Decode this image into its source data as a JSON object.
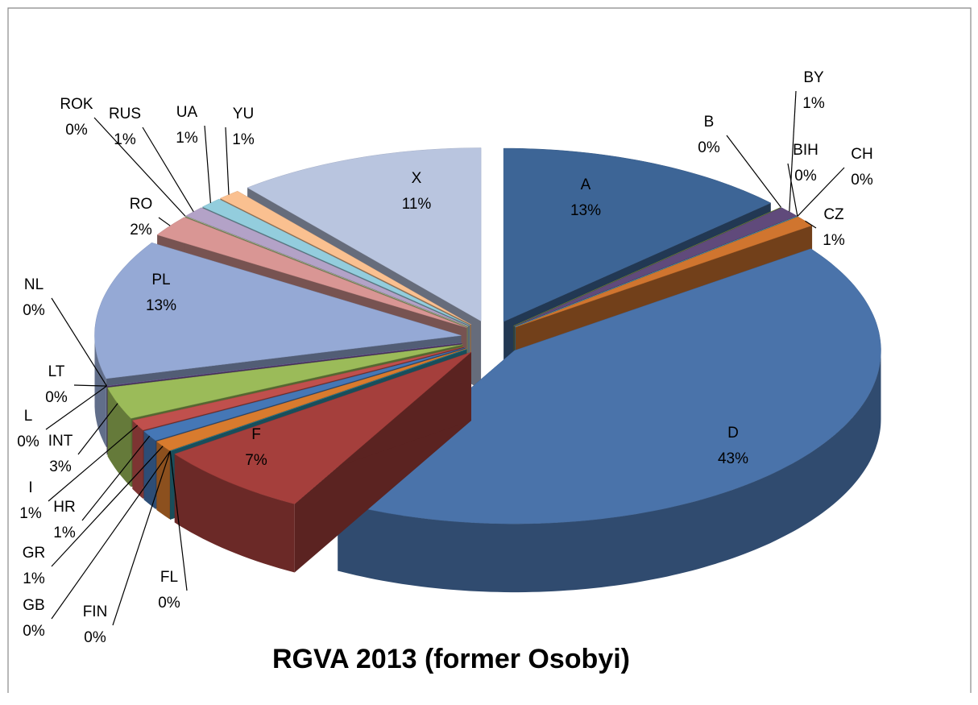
{
  "chart_data": {
    "type": "pie",
    "title": "RGVA 2013 (former Osobyi)",
    "categories": [
      "A",
      "B",
      "BY",
      "BIH",
      "CH",
      "CZ",
      "D",
      "F",
      "FL",
      "FIN",
      "GB",
      "GR",
      "HR",
      "I",
      "INT",
      "L",
      "LT",
      "NL",
      "PL",
      "RO",
      "ROK",
      "RUS",
      "UA",
      "YU",
      "X"
    ],
    "values": [
      13,
      0,
      1,
      0,
      0,
      1,
      43,
      7,
      0,
      0,
      0,
      1,
      1,
      1,
      3,
      0,
      0,
      0,
      13,
      2,
      0,
      1,
      1,
      1,
      11
    ],
    "value_labels": [
      "13%",
      "0%",
      "1%",
      "0%",
      "0%",
      "1%",
      "43%",
      "7%",
      "0%",
      "0%",
      "0%",
      "1%",
      "1%",
      "1%",
      "3%",
      "0%",
      "0%",
      "0%",
      "13%",
      "2%",
      "0%",
      "1%",
      "1%",
      "1%",
      "11%"
    ],
    "colors": [
      "#3d6596",
      "#77933c",
      "#604a7b",
      "#31859c",
      "#4bacc6",
      "#d0752f",
      "#4a73aa",
      "#a53f3c",
      "#6a8435",
      "#5e4d7d",
      "#2e8ea6",
      "#d87b2e",
      "#4577b6",
      "#c0504d",
      "#9bbb59",
      "#8064a2",
      "#4bacc6",
      "#7a5c9e",
      "#95a9d5",
      "#d99694",
      "#c3d69b",
      "#b3a2c7",
      "#93cddd",
      "#fac090",
      "#b9c5df"
    ]
  }
}
